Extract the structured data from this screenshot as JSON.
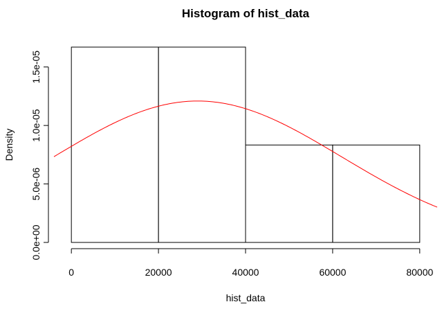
{
  "chart_data": {
    "type": "bar",
    "title": "Histogram of hist_data",
    "xlabel": "hist_data",
    "ylabel": "Density",
    "bins": [
      {
        "from": 0,
        "to": 20000,
        "density": 1.67e-05
      },
      {
        "from": 20000,
        "to": 40000,
        "density": 1.67e-05
      },
      {
        "from": 40000,
        "to": 60000,
        "density": 8.33e-06
      },
      {
        "from": 60000,
        "to": 80000,
        "density": 8.33e-06
      }
    ],
    "xlim": [
      -4000,
      84000
    ],
    "ylim": [
      0,
      1.67e-05
    ],
    "x_ticks": [
      {
        "value": 0,
        "label": "0"
      },
      {
        "value": 20000,
        "label": "20000"
      },
      {
        "value": 40000,
        "label": "40000"
      },
      {
        "value": 60000,
        "label": "60000"
      },
      {
        "value": 80000,
        "label": "80000"
      }
    ],
    "y_ticks": [
      {
        "value": 0,
        "label": "0.0e+00"
      },
      {
        "value": 5e-06,
        "label": "5.0e-06"
      },
      {
        "value": 1e-05,
        "label": "1.0e-05"
      },
      {
        "value": 1.5e-05,
        "label": "1.5e-05"
      }
    ],
    "series": [
      {
        "type": "line",
        "color": "#ff0000",
        "mean": 29000,
        "sd": 33000
      }
    ],
    "grid": false,
    "legend": "none"
  }
}
